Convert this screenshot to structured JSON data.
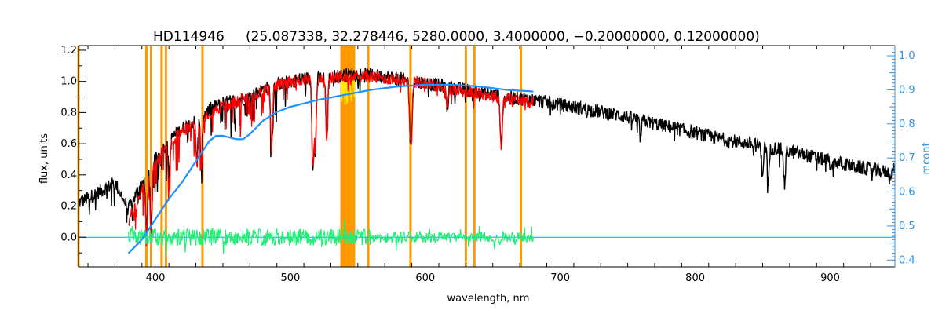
{
  "chart_data": {
    "type": "line",
    "title_object": "HD114946",
    "title_params": "(25.087338, 32.278446, 5280.0000, 3.4000000, −0.20000000, 0.12000000)",
    "xlabel": "wavelength, nm",
    "ylabel_left": "flux, units",
    "ylabel_right": "mcont",
    "xlim": [
      343,
      948
    ],
    "ylim_left": [
      -0.19,
      1.23
    ],
    "ylim_right": [
      0.38,
      1.03
    ],
    "x_ticks": [
      400,
      500,
      600,
      700,
      800,
      900
    ],
    "y_ticks_left": [
      0.0,
      0.2,
      0.4,
      0.6,
      0.8,
      1.0,
      1.2
    ],
    "y_ticks_right": [
      0.4,
      0.5,
      0.6,
      0.7,
      0.8,
      0.9,
      1.0
    ],
    "grid": false,
    "colors": {
      "observed": "#000000",
      "model": "#ff0000",
      "continuum": "#1e90ff",
      "residual": "#22ee77",
      "masks": "#ff9900",
      "highlight": "#ffee00",
      "right_axis": "#2b8fe0",
      "text": "#000000"
    },
    "series": [
      {
        "role": "observed",
        "x": [
          343,
          350,
          360,
          370,
          380,
          390,
          400,
          410,
          420,
          430,
          440,
          450,
          460,
          470,
          480,
          490,
          500,
          510,
          520,
          530,
          540,
          550,
          560,
          570,
          580,
          590,
          600,
          620,
          640,
          660,
          680,
          700,
          720,
          740,
          760,
          780,
          800,
          820,
          840,
          860,
          880,
          900,
          920,
          940,
          948
        ],
        "y": [
          0.22,
          0.25,
          0.3,
          0.35,
          0.18,
          0.35,
          0.5,
          0.62,
          0.7,
          0.75,
          0.82,
          0.86,
          0.88,
          0.9,
          0.95,
          0.98,
          1.0,
          1.02,
          1.02,
          1.03,
          1.04,
          1.05,
          1.04,
          1.03,
          1.02,
          1.0,
          0.99,
          0.96,
          0.93,
          0.9,
          0.88,
          0.85,
          0.82,
          0.79,
          0.75,
          0.71,
          0.67,
          0.63,
          0.6,
          0.57,
          0.53,
          0.49,
          0.45,
          0.42,
          0.44
        ]
      },
      {
        "role": "model",
        "x": [
          380,
          390,
          400,
          410,
          420,
          430,
          440,
          450,
          460,
          470,
          480,
          490,
          500,
          510,
          520,
          530,
          540,
          550,
          560,
          570,
          580,
          590,
          600,
          620,
          640,
          660,
          680
        ],
        "y": [
          0.1,
          0.3,
          0.48,
          0.6,
          0.68,
          0.73,
          0.8,
          0.84,
          0.87,
          0.9,
          0.94,
          0.97,
          1.0,
          1.01,
          1.01,
          1.02,
          1.03,
          1.04,
          1.03,
          1.02,
          1.01,
          1.0,
          0.99,
          0.95,
          0.92,
          0.89,
          0.87
        ]
      },
      {
        "role": "continuum",
        "axis": "right",
        "x": [
          380,
          390,
          400,
          410,
          420,
          430,
          440,
          445,
          450,
          460,
          465,
          470,
          480,
          490,
          500,
          520,
          540,
          560,
          580,
          600,
          620,
          640,
          660,
          680
        ],
        "y": [
          0.42,
          0.46,
          0.52,
          0.58,
          0.63,
          0.69,
          0.75,
          0.765,
          0.765,
          0.755,
          0.755,
          0.77,
          0.81,
          0.835,
          0.85,
          0.87,
          0.885,
          0.9,
          0.91,
          0.915,
          0.915,
          0.91,
          0.9,
          0.895
        ]
      },
      {
        "role": "residual",
        "x": [
          380,
          680
        ],
        "y": [
          0.0,
          0.0
        ]
      }
    ],
    "absorption_lines": [
      {
        "x": 393.4,
        "depth": 0.95
      },
      {
        "x": 396.8,
        "depth": 0.92
      },
      {
        "x": 410.2,
        "depth": 0.35
      },
      {
        "x": 430.8,
        "depth": 0.35
      },
      {
        "x": 434.0,
        "depth": 0.38
      },
      {
        "x": 486.1,
        "depth": 0.4
      },
      {
        "x": 516.7,
        "depth": 0.55
      },
      {
        "x": 517.3,
        "depth": 0.5
      },
      {
        "x": 518.4,
        "depth": 0.5
      },
      {
        "x": 527.0,
        "depth": 0.38
      },
      {
        "x": 589.0,
        "depth": 0.4
      },
      {
        "x": 589.6,
        "depth": 0.4
      },
      {
        "x": 616.2,
        "depth": 0.15
      },
      {
        "x": 656.3,
        "depth": 0.4
      },
      {
        "x": 759.4,
        "depth": 0.15
      },
      {
        "x": 849.8,
        "depth": 0.3
      },
      {
        "x": 854.2,
        "depth": 0.4
      },
      {
        "x": 866.2,
        "depth": 0.4
      },
      {
        "x": 901.0,
        "depth": 0.14
      },
      {
        "x": 944.0,
        "depth": 0.12
      }
    ],
    "mask_lines": [
      343,
      393.3,
      396.8,
      404.6,
      407.8,
      434.9,
      540.2,
      541.8,
      543.5,
      545.4,
      547.0,
      557.7,
      589.0,
      630.0,
      636.4,
      670.8
    ],
    "highlight_band": [
      537,
      548
    ]
  }
}
